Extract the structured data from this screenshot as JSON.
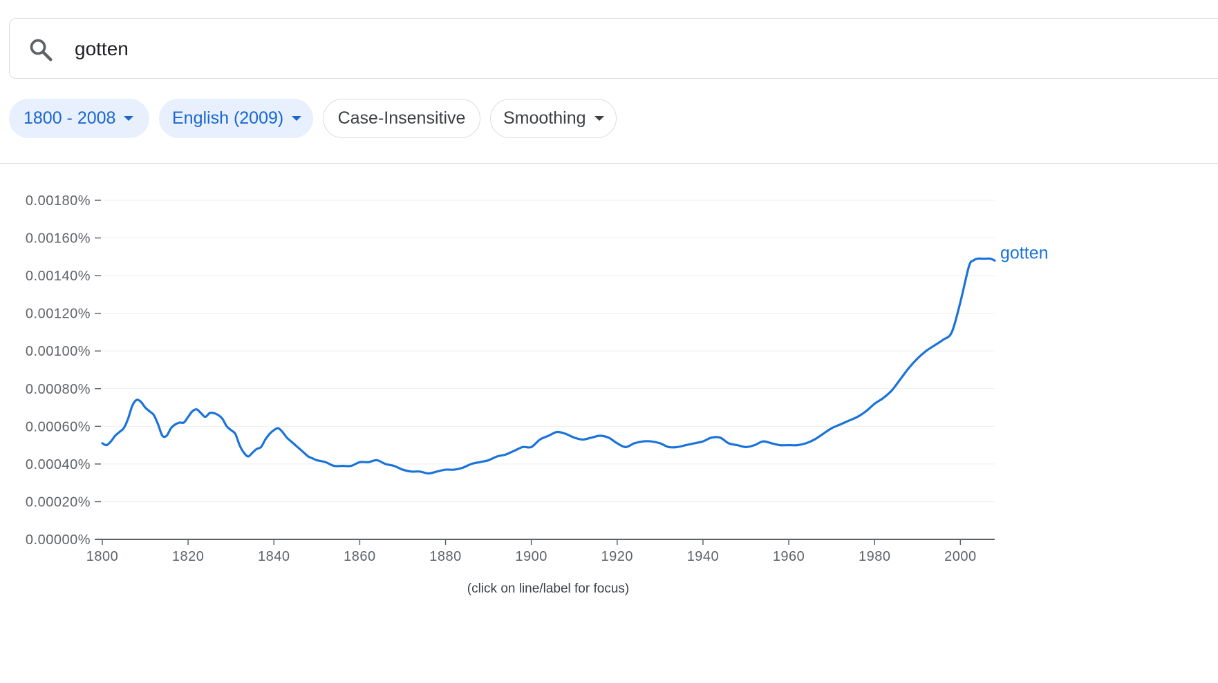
{
  "search": {
    "query": "gotten"
  },
  "filters": {
    "year_range": "1800 - 2008",
    "corpus": "English (2009)",
    "case": "Case-Insensitive",
    "smoothing": "Smoothing"
  },
  "hint": "(click on line/label for focus)",
  "colors": {
    "series": "#1a73d9",
    "chip_bg": "#e8f0fe",
    "chip_text": "#1967d2"
  },
  "chart_data": {
    "type": "line",
    "title": "",
    "xlabel": "",
    "ylabel": "",
    "xlim": [
      1800,
      2008
    ],
    "ylim": [
      0,
      0.0018
    ],
    "grid": true,
    "y_ticks": [
      0,
      0.0002,
      0.0004,
      0.0006,
      0.0008,
      0.001,
      0.0012,
      0.0014,
      0.0016,
      0.0018
    ],
    "y_tick_labels": [
      "0.00000%",
      "0.00020%",
      "0.00040%",
      "0.00060%",
      "0.00080%",
      "0.00100%",
      "0.00120%",
      "0.00140%",
      "0.00160%",
      "0.00180%"
    ],
    "x_ticks": [
      1800,
      1820,
      1840,
      1860,
      1880,
      1900,
      1920,
      1940,
      1960,
      1980,
      2000
    ],
    "x_tick_labels": [
      "1800",
      "1820",
      "1840",
      "1860",
      "1880",
      "1900",
      "1920",
      "1940",
      "1960",
      "1980",
      "2000"
    ],
    "legend": "end-of-line",
    "series": [
      {
        "name": "gotten",
        "color": "#1a73d9",
        "x": [
          1800,
          1801,
          1802,
          1803,
          1804,
          1805,
          1806,
          1807,
          1808,
          1809,
          1810,
          1811,
          1812,
          1813,
          1814,
          1815,
          1816,
          1817,
          1818,
          1819,
          1820,
          1821,
          1822,
          1823,
          1824,
          1825,
          1826,
          1827,
          1828,
          1829,
          1830,
          1831,
          1832,
          1833,
          1834,
          1835,
          1836,
          1837,
          1838,
          1839,
          1840,
          1841,
          1842,
          1843,
          1844,
          1845,
          1846,
          1847,
          1848,
          1849,
          1850,
          1852,
          1854,
          1856,
          1858,
          1860,
          1862,
          1864,
          1866,
          1868,
          1870,
          1872,
          1874,
          1876,
          1878,
          1880,
          1882,
          1884,
          1886,
          1888,
          1890,
          1892,
          1894,
          1896,
          1898,
          1900,
          1902,
          1904,
          1906,
          1908,
          1910,
          1912,
          1914,
          1916,
          1918,
          1920,
          1922,
          1924,
          1926,
          1928,
          1930,
          1932,
          1934,
          1936,
          1938,
          1940,
          1942,
          1944,
          1946,
          1948,
          1950,
          1952,
          1954,
          1956,
          1958,
          1960,
          1962,
          1964,
          1966,
          1968,
          1970,
          1972,
          1974,
          1976,
          1978,
          1980,
          1982,
          1984,
          1986,
          1988,
          1990,
          1992,
          1994,
          1996,
          1998,
          2000,
          2002,
          2003,
          2004,
          2005,
          2006,
          2007,
          2008
        ],
        "values": [
          0.00051,
          0.0005,
          0.00052,
          0.00055,
          0.00057,
          0.00059,
          0.00064,
          0.00071,
          0.00074,
          0.00073,
          0.0007,
          0.00068,
          0.00066,
          0.00061,
          0.00055,
          0.00055,
          0.00059,
          0.00061,
          0.00062,
          0.00062,
          0.00065,
          0.00068,
          0.00069,
          0.00067,
          0.00065,
          0.00067,
          0.00067,
          0.00066,
          0.00064,
          0.0006,
          0.00058,
          0.00056,
          0.0005,
          0.00046,
          0.00044,
          0.00046,
          0.00048,
          0.00049,
          0.00053,
          0.00056,
          0.00058,
          0.00059,
          0.00057,
          0.00054,
          0.00052,
          0.0005,
          0.00048,
          0.00046,
          0.00044,
          0.00043,
          0.00042,
          0.00041,
          0.00039,
          0.00039,
          0.00039,
          0.00041,
          0.00041,
          0.00042,
          0.0004,
          0.00039,
          0.00037,
          0.00036,
          0.00036,
          0.00035,
          0.00036,
          0.00037,
          0.00037,
          0.00038,
          0.0004,
          0.00041,
          0.00042,
          0.00044,
          0.00045,
          0.00047,
          0.00049,
          0.00049,
          0.00053,
          0.00055,
          0.00057,
          0.00056,
          0.00054,
          0.00053,
          0.00054,
          0.00055,
          0.00054,
          0.00051,
          0.00049,
          0.00051,
          0.00052,
          0.00052,
          0.00051,
          0.00049,
          0.00049,
          0.0005,
          0.00051,
          0.00052,
          0.00054,
          0.00054,
          0.00051,
          0.0005,
          0.00049,
          0.0005,
          0.00052,
          0.00051,
          0.0005,
          0.0005,
          0.0005,
          0.00051,
          0.00053,
          0.00056,
          0.00059,
          0.00061,
          0.00063,
          0.00065,
          0.00068,
          0.00072,
          0.00075,
          0.00079,
          0.00085,
          0.00091,
          0.00096,
          0.001,
          0.00103,
          0.00106,
          0.0011,
          0.00126,
          0.00145,
          0.00148,
          0.00149,
          0.00149,
          0.00149,
          0.00149,
          0.00148
        ]
      }
    ]
  }
}
